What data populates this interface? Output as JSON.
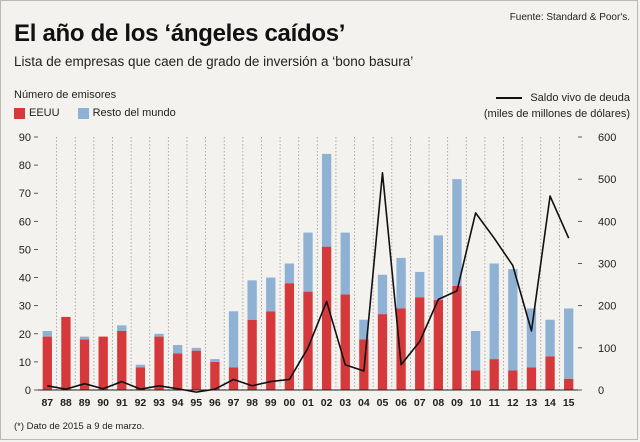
{
  "source": "Fuente: Standard & Poor's.",
  "title": "El año de los ‘ángeles caídos’",
  "subtitle": "Lista de empresas que caen de grado de inversión a ‘bono basura’",
  "footnote": "(*) Dato de 2015 a 9 de marzo.",
  "legend": {
    "left_title": "Número de emisores",
    "us_label": "EEUU",
    "rest_label": "Resto del mundo",
    "line_label_1": "Saldo vivo de deuda",
    "line_label_2": "(miles de millones de dólares)"
  },
  "colors": {
    "us": "#d6393c",
    "rest": "#8fb1d3",
    "line": "#111111",
    "background": "#f4f2ee"
  },
  "chart_data": {
    "type": "bar",
    "stacked": true,
    "categories": [
      "87",
      "88",
      "89",
      "90",
      "91",
      "92",
      "93",
      "94",
      "95",
      "96",
      "97",
      "98",
      "99",
      "00",
      "01",
      "02",
      "03",
      "04",
      "05",
      "06",
      "07",
      "08",
      "09",
      "10",
      "11",
      "12",
      "13",
      "14",
      "15"
    ],
    "series": [
      {
        "name": "EEUU",
        "values": [
          19,
          26,
          18,
          19,
          21,
          8,
          19,
          13,
          14,
          10,
          8,
          25,
          28,
          38,
          35,
          51,
          34,
          18,
          27,
          29,
          33,
          32,
          37,
          7,
          11,
          7,
          8,
          12,
          4
        ]
      },
      {
        "name": "Resto del mundo",
        "values": [
          2,
          0,
          1,
          0,
          2,
          1,
          1,
          3,
          1,
          1,
          20,
          14,
          12,
          7,
          21,
          33,
          22,
          7,
          14,
          18,
          9,
          23,
          38,
          14,
          34,
          36,
          21,
          13,
          25
        ]
      },
      {
        "name": "Saldo vivo de deuda",
        "axis": "right",
        "type": "line",
        "values": [
          10,
          2,
          15,
          3,
          20,
          2,
          10,
          3,
          -5,
          2,
          25,
          10,
          20,
          25,
          100,
          210,
          60,
          45,
          515,
          60,
          115,
          215,
          235,
          420,
          360,
          295,
          140,
          460,
          360
        ]
      }
    ],
    "y_left": {
      "min": 0,
      "max": 90,
      "ticks": [
        0,
        10,
        20,
        30,
        40,
        50,
        60,
        70,
        80,
        90
      ]
    },
    "y_right": {
      "min": 0,
      "max": 600,
      "ticks": [
        0,
        100,
        200,
        300,
        400,
        500,
        600
      ]
    },
    "x_note": "15 = 2015 (*)"
  }
}
